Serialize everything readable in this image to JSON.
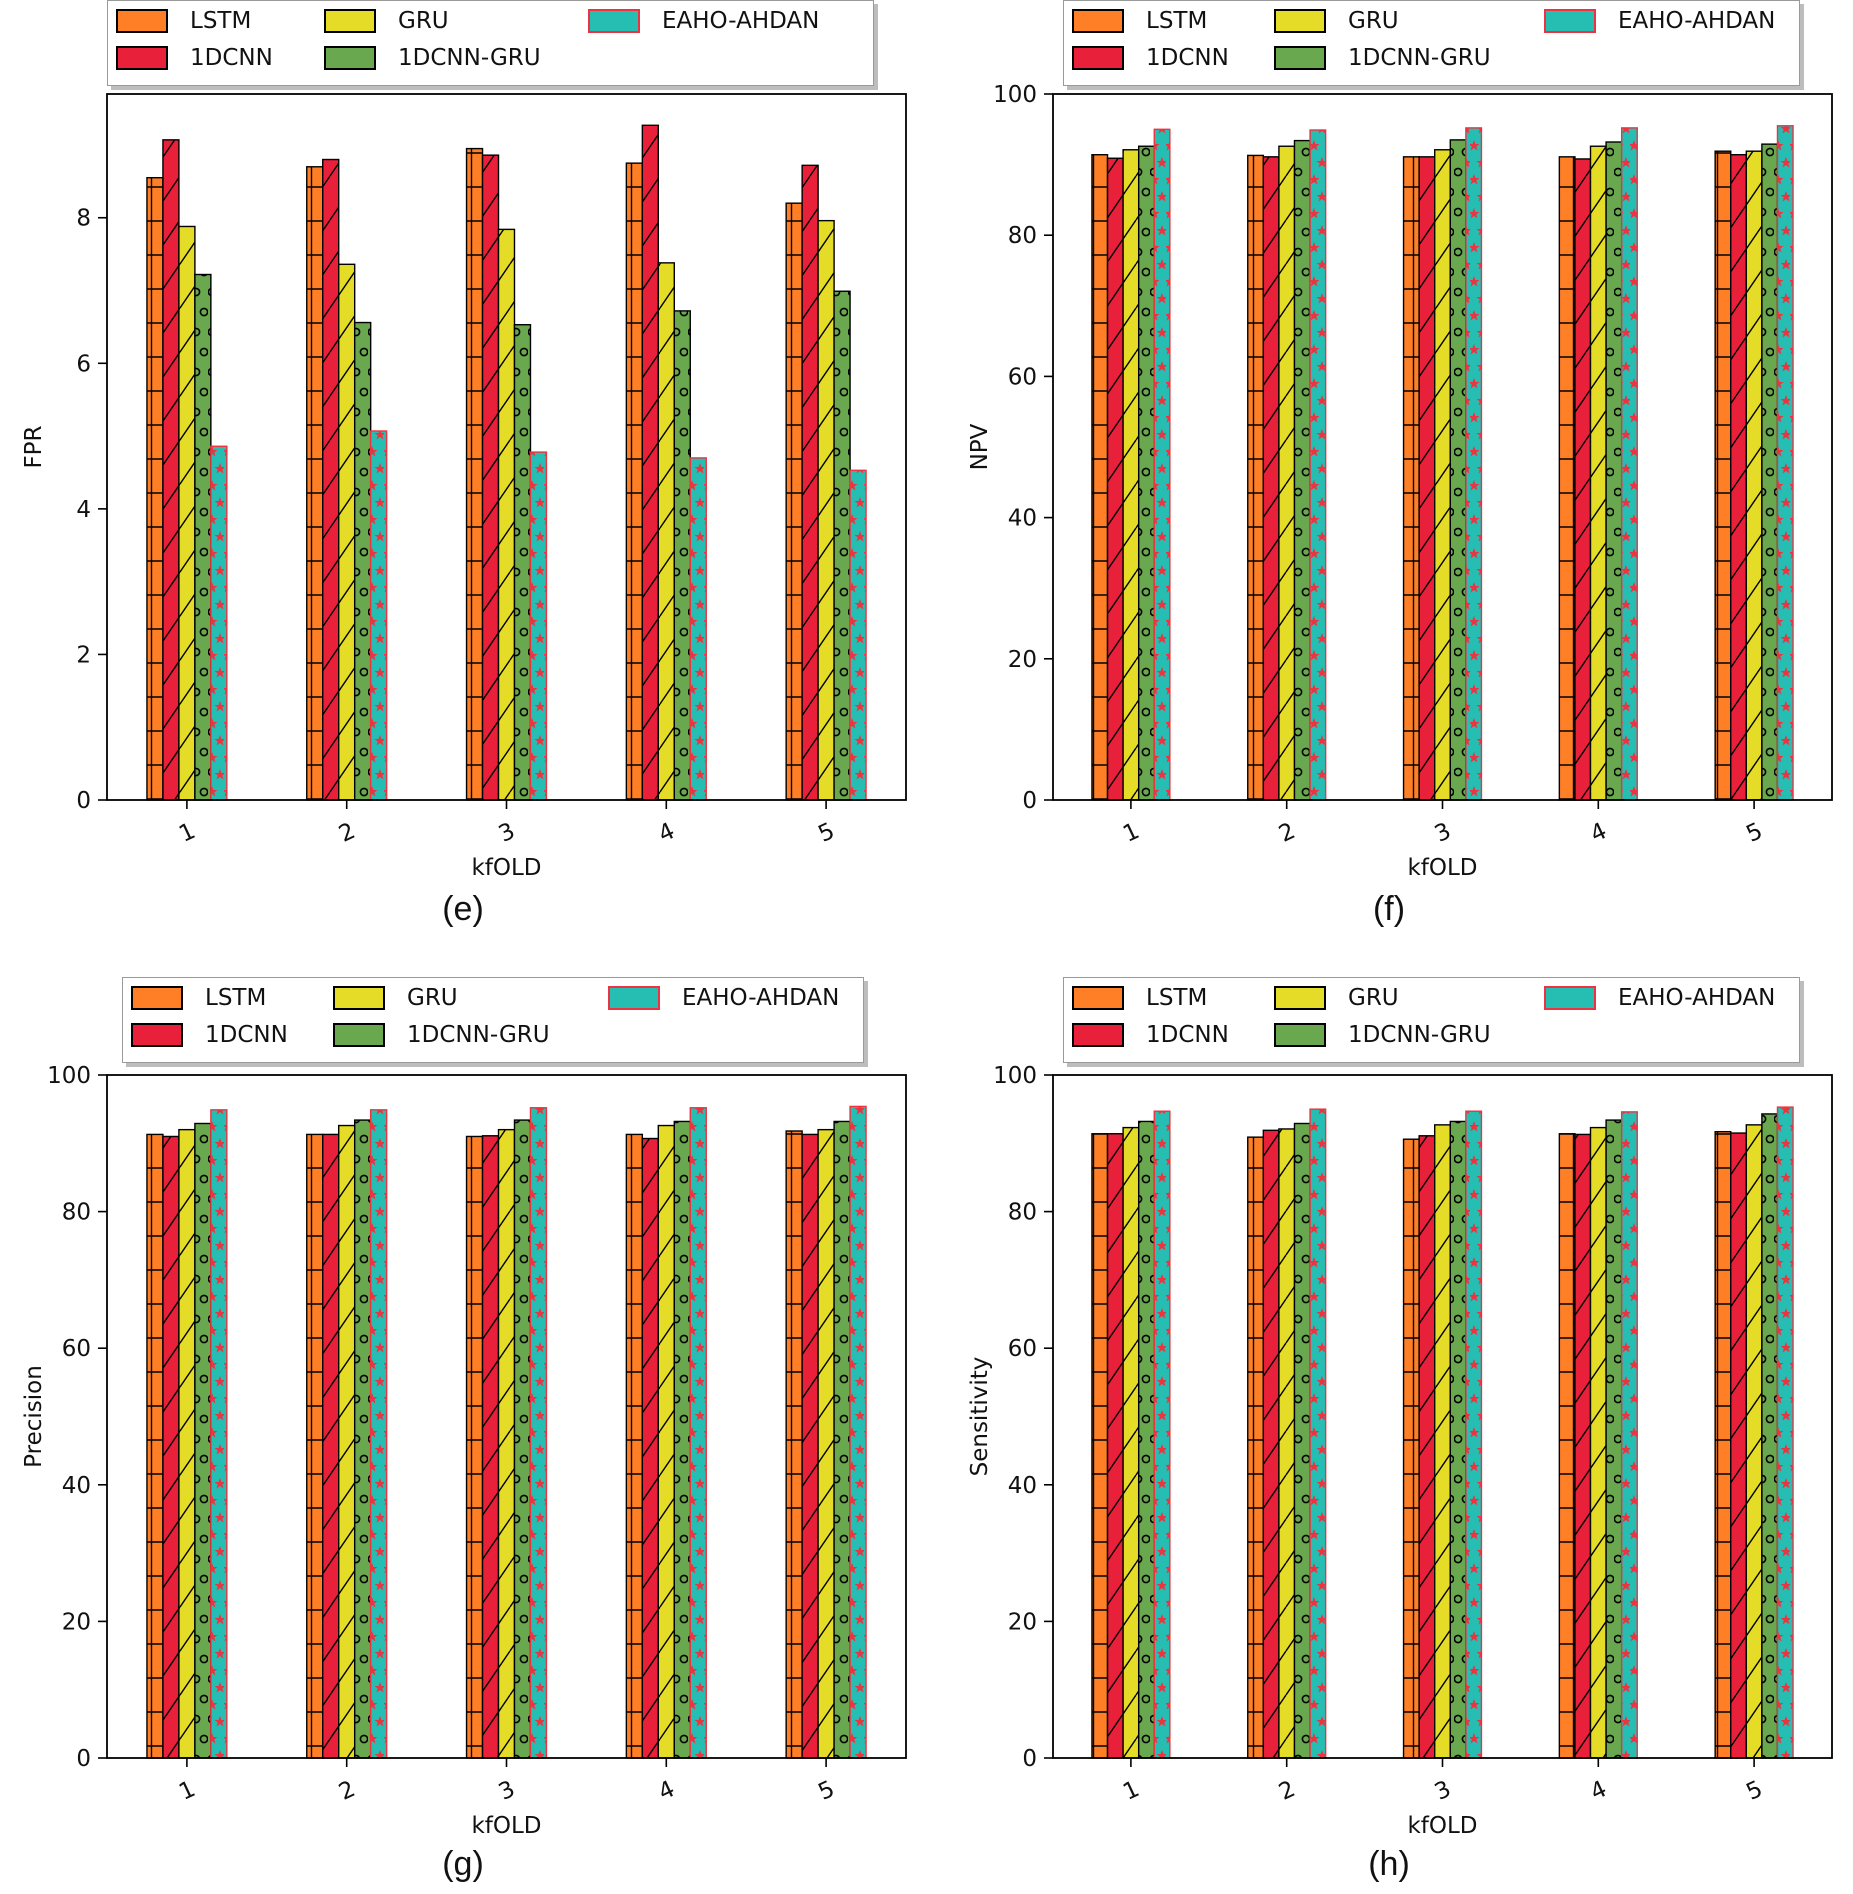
{
  "colors": {
    "LSTM": "#ff7f27",
    "1DCNN": "#e8203a",
    "GRU": "#e5dc28",
    "1DCNN-GRU": "#6aa84f",
    "EAHO-AHDAN": "#26bdb3",
    "EAHO-AHDAN-edge": "#ee3340",
    "EAHO-AHDAN-star": "#ee3340"
  },
  "chart_data": [
    {
      "id": "e",
      "type": "bar",
      "caption": "(e)",
      "xlabel": "kfOLD",
      "ylabel": "FPR",
      "ylim": [
        0,
        9.7
      ],
      "yticks": [
        "0",
        "2",
        "4",
        "6",
        "8"
      ],
      "categories": [
        "1",
        "2",
        "3",
        "4",
        "5"
      ],
      "legend": [
        "LSTM",
        "1DCNN",
        "GRU",
        "1DCNN-GRU",
        "EAHO-AHDAN"
      ],
      "series": [
        {
          "name": "LSTM",
          "values": [
            8.55,
            8.7,
            8.95,
            8.75,
            8.2
          ]
        },
        {
          "name": "1DCNN",
          "values": [
            9.07,
            8.8,
            8.86,
            9.27,
            8.72
          ]
        },
        {
          "name": "GRU",
          "values": [
            7.88,
            7.36,
            7.84,
            7.38,
            7.96
          ]
        },
        {
          "name": "1DCNN-GRU",
          "values": [
            7.22,
            6.56,
            6.53,
            6.72,
            6.99
          ]
        },
        {
          "name": "EAHO-AHDAN",
          "values": [
            4.86,
            5.07,
            4.78,
            4.7,
            4.53
          ]
        }
      ]
    },
    {
      "id": "f",
      "type": "bar",
      "caption": "(f)",
      "xlabel": "kfOLD",
      "ylabel": "NPV",
      "ylim": [
        0,
        100
      ],
      "yticks": [
        "0",
        "20",
        "40",
        "60",
        "80",
        "100"
      ],
      "categories": [
        "1",
        "2",
        "3",
        "4",
        "5"
      ],
      "legend": [
        "LSTM",
        "1DCNN",
        "GRU",
        "1DCNN-GRU",
        "EAHO-AHDAN"
      ],
      "series": [
        {
          "name": "LSTM",
          "values": [
            91.4,
            91.3,
            91.1,
            91.1,
            91.9
          ]
        },
        {
          "name": "1DCNN",
          "values": [
            90.9,
            91.1,
            91.1,
            90.8,
            91.4
          ]
        },
        {
          "name": "GRU",
          "values": [
            92.1,
            92.6,
            92.1,
            92.6,
            91.9
          ]
        },
        {
          "name": "1DCNN-GRU",
          "values": [
            92.6,
            93.4,
            93.5,
            93.2,
            92.9
          ]
        },
        {
          "name": "EAHO-AHDAN",
          "values": [
            95.0,
            94.9,
            95.2,
            95.2,
            95.5
          ]
        }
      ]
    },
    {
      "id": "g",
      "type": "bar",
      "caption": "(g)",
      "xlabel": "kfOLD",
      "ylabel": "Precision",
      "ylim": [
        0,
        100
      ],
      "yticks": [
        "0",
        "20",
        "40",
        "60",
        "80",
        "100"
      ],
      "categories": [
        "1",
        "2",
        "3",
        "4",
        "5"
      ],
      "legend": [
        "LSTM",
        "1DCNN",
        "GRU",
        "1DCNN-GRU",
        "EAHO-AHDAN"
      ],
      "series": [
        {
          "name": "LSTM",
          "values": [
            91.3,
            91.3,
            91.0,
            91.3,
            91.8
          ]
        },
        {
          "name": "1DCNN",
          "values": [
            91.0,
            91.3,
            91.1,
            90.7,
            91.3
          ]
        },
        {
          "name": "GRU",
          "values": [
            92.0,
            92.6,
            92.0,
            92.6,
            92.0
          ]
        },
        {
          "name": "1DCNN-GRU",
          "values": [
            92.9,
            93.4,
            93.4,
            93.2,
            93.2
          ]
        },
        {
          "name": "EAHO-AHDAN",
          "values": [
            94.9,
            94.9,
            95.2,
            95.2,
            95.4
          ]
        }
      ]
    },
    {
      "id": "h",
      "type": "bar",
      "caption": "(h)",
      "xlabel": "kfOLD",
      "ylabel": "Sensitivity",
      "ylim": [
        0,
        100
      ],
      "yticks": [
        "0",
        "20",
        "40",
        "60",
        "80",
        "100"
      ],
      "categories": [
        "1",
        "2",
        "3",
        "4",
        "5"
      ],
      "legend": [
        "LSTM",
        "1DCNN",
        "GRU",
        "1DCNN-GRU",
        "EAHO-AHDAN"
      ],
      "series": [
        {
          "name": "LSTM",
          "values": [
            91.4,
            90.9,
            90.6,
            91.4,
            91.7
          ]
        },
        {
          "name": "1DCNN",
          "values": [
            91.4,
            91.9,
            91.1,
            91.3,
            91.5
          ]
        },
        {
          "name": "GRU",
          "values": [
            92.3,
            92.1,
            92.7,
            92.3,
            92.7
          ]
        },
        {
          "name": "1DCNN-GRU",
          "values": [
            93.2,
            92.9,
            93.2,
            93.4,
            94.3
          ]
        },
        {
          "name": "EAHO-AHDAN",
          "values": [
            94.7,
            95.0,
            94.7,
            94.6,
            95.3
          ]
        }
      ]
    }
  ]
}
